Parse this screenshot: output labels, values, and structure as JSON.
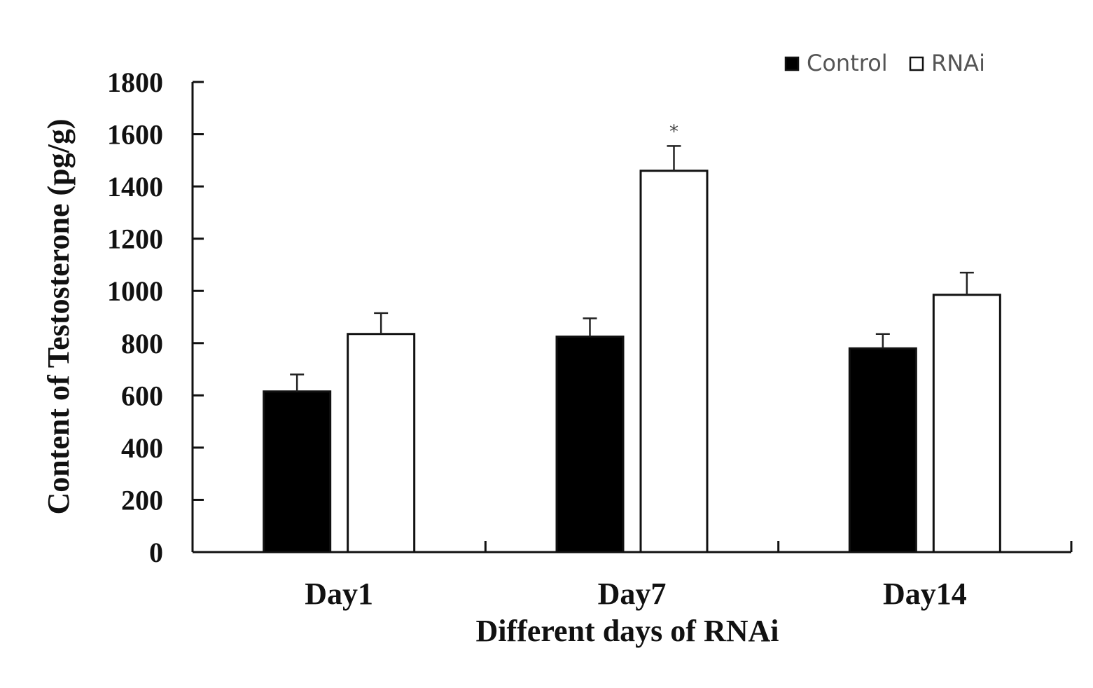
{
  "chart_data": {
    "type": "bar",
    "title": "",
    "xlabel": "Different days of RNAi",
    "ylabel": "Content of Testosterone (pg/g)",
    "categories": [
      "Day1",
      "Day7",
      "Day14"
    ],
    "ylim": [
      0,
      1800
    ],
    "yticks": [
      0,
      200,
      400,
      600,
      800,
      1000,
      1200,
      1400,
      1600,
      1800
    ],
    "ytick_labels": [
      "0",
      "200",
      "400",
      "600",
      "800",
      "1000",
      "1200",
      "1400",
      "1600",
      "1800"
    ],
    "grid": false,
    "legend_position": "top-right",
    "series": [
      {
        "name": "Control",
        "fill": "#000000",
        "values": [
          615,
          825,
          780
        ],
        "errors": [
          65,
          70,
          55
        ]
      },
      {
        "name": "RNAi",
        "fill": "#ffffff",
        "values": [
          835,
          1460,
          985
        ],
        "errors": [
          80,
          95,
          85
        ]
      }
    ],
    "annotations": [
      {
        "text": "*",
        "category": "Day7",
        "series": "RNAi"
      }
    ]
  }
}
